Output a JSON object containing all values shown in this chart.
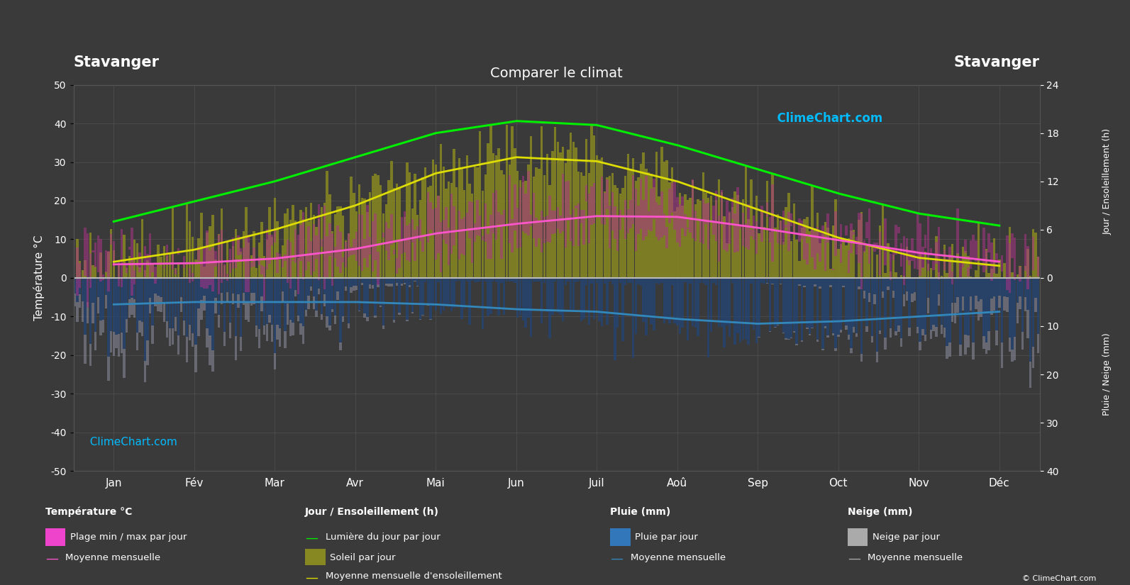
{
  "title": "Comparer le climat",
  "location": "Stavanger",
  "bg_color": "#3a3a3a",
  "grid_color": "#555555",
  "text_color": "#ffffff",
  "months": [
    "Jan",
    "Fév",
    "Mar",
    "Avr",
    "Mai",
    "Jun",
    "Juil",
    "Aoû",
    "Sep",
    "Oct",
    "Nov",
    "Déc"
  ],
  "ylim_temp": [
    -50,
    50
  ],
  "temp_mean": [
    3.5,
    3.8,
    5.0,
    7.5,
    11.5,
    14.0,
    16.0,
    15.8,
    13.0,
    9.8,
    6.5,
    4.2
  ],
  "temp_max_daily": [
    6.0,
    6.5,
    8.5,
    12.0,
    16.0,
    18.5,
    21.0,
    20.5,
    17.0,
    12.5,
    8.5,
    6.5
  ],
  "temp_min_daily": [
    1.0,
    1.0,
    2.0,
    4.0,
    7.5,
    10.0,
    12.0,
    11.5,
    9.5,
    7.0,
    3.5,
    2.0
  ],
  "temp_max_abs": [
    13.0,
    15.0,
    20.0,
    25.0,
    30.0,
    34.0,
    38.0,
    38.0,
    33.0,
    25.0,
    18.0,
    13.0
  ],
  "temp_min_abs": [
    -13.0,
    -12.0,
    -8.0,
    -3.0,
    1.0,
    5.0,
    7.0,
    6.5,
    2.5,
    -3.0,
    -8.0,
    -11.0
  ],
  "daylight_hours": [
    7.0,
    9.5,
    12.0,
    15.0,
    18.0,
    19.5,
    19.0,
    16.5,
    13.5,
    10.5,
    8.0,
    6.5
  ],
  "sunshine_hours_monthly": [
    2.0,
    3.5,
    6.0,
    9.0,
    13.0,
    15.0,
    14.5,
    12.0,
    8.5,
    5.0,
    2.5,
    1.5
  ],
  "rain_mm_per_day": [
    5.5,
    5.0,
    5.0,
    5.0,
    5.5,
    6.5,
    7.0,
    8.5,
    9.5,
    9.0,
    8.0,
    7.0
  ],
  "rain_max_per_day": [
    18.0,
    16.0,
    16.0,
    14.0,
    14.0,
    15.0,
    17.0,
    20.0,
    25.0,
    24.0,
    22.0,
    20.0
  ],
  "snow_mm_per_day": [
    2.5,
    2.5,
    1.5,
    0.2,
    0.0,
    0.0,
    0.0,
    0.0,
    0.0,
    0.1,
    1.0,
    2.5
  ],
  "snow_max_per_day": [
    8.0,
    8.0,
    5.0,
    1.0,
    0.0,
    0.0,
    0.0,
    0.0,
    0.0,
    0.5,
    4.0,
    8.0
  ],
  "color_green": "#00ee00",
  "color_yellow": "#dddd00",
  "color_pink": "#ff55cc",
  "color_blue": "#3388bb",
  "color_sunshine_bar": "#888822",
  "color_temp_bar": "#aa3388",
  "color_rain_bar": "#224477",
  "color_snow_bar": "#888899",
  "sun_scale": 2.0,
  "rain_scale": 1.25
}
